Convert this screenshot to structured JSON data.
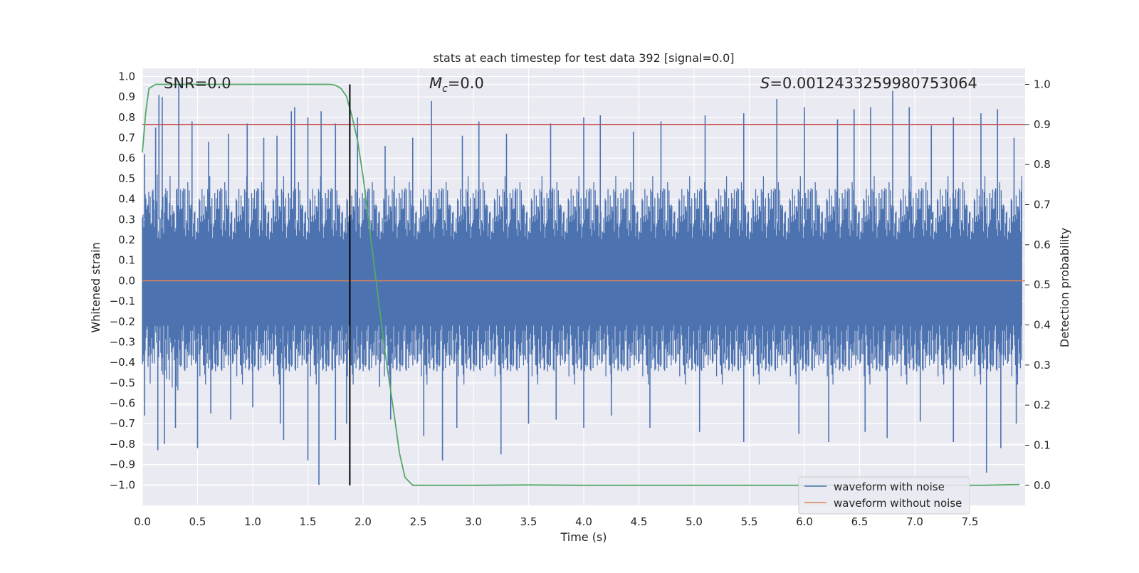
{
  "chart_data": {
    "type": "line",
    "title": "stats at each timestep for test data 392 [signal=0.0]",
    "xlabel": "Time (s)",
    "ylabel_left": "Whitened strain",
    "ylabel_right": "Detection probability",
    "xlim": [
      0.0,
      8.0
    ],
    "ylim_left": [
      -1.1,
      1.04
    ],
    "ylim_right": [
      -0.05,
      1.04
    ],
    "x_ticks": [
      "0.0",
      "0.5",
      "1.0",
      "1.5",
      "2.0",
      "2.5",
      "3.0",
      "3.5",
      "4.0",
      "4.5",
      "5.0",
      "5.5",
      "6.0",
      "6.5",
      "7.0",
      "7.5"
    ],
    "y_left_ticks": [
      "1.0",
      "0.9",
      "0.8",
      "0.7",
      "0.6",
      "0.5",
      "0.4",
      "0.3",
      "0.2",
      "0.1",
      "0.0",
      "-0.1",
      "-0.2",
      "-0.3",
      "-0.4",
      "-0.5",
      "-0.6",
      "-0.7",
      "-0.8",
      "-0.9",
      "-1.0"
    ],
    "y_right_ticks": [
      "1.0",
      "0.9",
      "0.8",
      "0.7",
      "0.6",
      "0.5",
      "0.4",
      "0.3",
      "0.2",
      "0.1",
      "0.0"
    ],
    "grid": true,
    "legend_position": "lower-right",
    "annotations": {
      "snr": "SNR=0.0",
      "mc_symbol": "M",
      "mc_subscript": "c",
      "mc_value": "=0.0",
      "s_symbol": "S",
      "s_value": "=0.0012433259980753064"
    },
    "series": [
      {
        "name": "waveform with noise",
        "axis": "left",
        "color": "#4c72b0",
        "description_values": {
          "typical_band": [
            -0.45,
            0.45
          ],
          "max": 0.97,
          "min": -1.0
        },
        "peaks": [
          {
            "x": 0.02,
            "y": 0.62
          },
          {
            "x": 0.12,
            "y": 0.75
          },
          {
            "x": 0.15,
            "y": 0.91
          },
          {
            "x": 0.18,
            "y": 0.9
          },
          {
            "x": 0.33,
            "y": 0.97
          },
          {
            "x": 0.45,
            "y": 0.78
          },
          {
            "x": 0.6,
            "y": 0.68
          },
          {
            "x": 0.78,
            "y": 0.72
          },
          {
            "x": 0.95,
            "y": 0.77
          },
          {
            "x": 1.1,
            "y": 0.7
          },
          {
            "x": 1.22,
            "y": 0.71
          },
          {
            "x": 1.35,
            "y": 0.83
          },
          {
            "x": 1.38,
            "y": 0.85
          },
          {
            "x": 1.5,
            "y": 0.8
          },
          {
            "x": 1.62,
            "y": 0.83
          },
          {
            "x": 1.75,
            "y": 0.77
          },
          {
            "x": 1.95,
            "y": 0.8
          },
          {
            "x": 2.2,
            "y": 0.66
          },
          {
            "x": 2.45,
            "y": 0.7
          },
          {
            "x": 2.62,
            "y": 0.88
          },
          {
            "x": 2.9,
            "y": 0.71
          },
          {
            "x": 3.05,
            "y": 0.78
          },
          {
            "x": 3.3,
            "y": 0.72
          },
          {
            "x": 3.7,
            "y": 0.77
          },
          {
            "x": 4.0,
            "y": 0.8
          },
          {
            "x": 4.15,
            "y": 0.81
          },
          {
            "x": 4.45,
            "y": 0.73
          },
          {
            "x": 4.7,
            "y": 0.78
          },
          {
            "x": 5.1,
            "y": 0.81
          },
          {
            "x": 5.45,
            "y": 0.82
          },
          {
            "x": 5.75,
            "y": 0.89
          },
          {
            "x": 6.0,
            "y": 0.85
          },
          {
            "x": 6.3,
            "y": 0.79
          },
          {
            "x": 6.45,
            "y": 0.84
          },
          {
            "x": 6.6,
            "y": 0.85
          },
          {
            "x": 6.8,
            "y": 0.93
          },
          {
            "x": 6.95,
            "y": 0.85
          },
          {
            "x": 7.15,
            "y": 0.76
          },
          {
            "x": 7.35,
            "y": 0.8
          },
          {
            "x": 7.6,
            "y": 0.82
          },
          {
            "x": 7.75,
            "y": 0.84
          },
          {
            "x": 7.9,
            "y": 0.7
          }
        ],
        "troughs": [
          {
            "x": 0.02,
            "y": -0.66
          },
          {
            "x": 0.14,
            "y": -0.83
          },
          {
            "x": 0.2,
            "y": -0.8
          },
          {
            "x": 0.3,
            "y": -0.72
          },
          {
            "x": 0.5,
            "y": -0.82
          },
          {
            "x": 0.62,
            "y": -0.65
          },
          {
            "x": 0.8,
            "y": -0.68
          },
          {
            "x": 1.0,
            "y": -0.62
          },
          {
            "x": 1.25,
            "y": -0.7
          },
          {
            "x": 1.28,
            "y": -0.78
          },
          {
            "x": 1.5,
            "y": -0.88
          },
          {
            "x": 1.6,
            "y": -1.0
          },
          {
            "x": 1.75,
            "y": -0.78
          },
          {
            "x": 1.85,
            "y": -0.7
          },
          {
            "x": 2.15,
            "y": -0.52
          },
          {
            "x": 2.25,
            "y": -0.68
          },
          {
            "x": 2.55,
            "y": -0.76
          },
          {
            "x": 2.72,
            "y": -0.88
          },
          {
            "x": 2.85,
            "y": -0.72
          },
          {
            "x": 3.25,
            "y": -0.85
          },
          {
            "x": 3.5,
            "y": -0.7
          },
          {
            "x": 3.75,
            "y": -0.68
          },
          {
            "x": 4.0,
            "y": -0.72
          },
          {
            "x": 4.25,
            "y": -0.66
          },
          {
            "x": 4.6,
            "y": -0.72
          },
          {
            "x": 5.05,
            "y": -0.74
          },
          {
            "x": 5.45,
            "y": -0.79
          },
          {
            "x": 5.95,
            "y": -0.75
          },
          {
            "x": 6.22,
            "y": -0.79
          },
          {
            "x": 6.55,
            "y": -0.74
          },
          {
            "x": 6.75,
            "y": -0.77
          },
          {
            "x": 7.05,
            "y": -0.69
          },
          {
            "x": 7.35,
            "y": -0.79
          },
          {
            "x": 7.65,
            "y": -0.94
          },
          {
            "x": 7.78,
            "y": -0.82
          },
          {
            "x": 7.92,
            "y": -0.7
          }
        ]
      },
      {
        "name": "waveform without noise",
        "axis": "left",
        "color": "#dd8452",
        "x": [
          0.0,
          8.0
        ],
        "y": [
          0.0,
          0.0
        ]
      },
      {
        "name": "detection probability",
        "axis": "right",
        "color": "#55a868",
        "x": [
          0.0,
          0.03,
          0.06,
          0.12,
          0.2,
          0.5,
          1.0,
          1.5,
          1.6,
          1.7,
          1.75,
          1.8,
          1.85,
          1.9,
          1.95,
          2.0,
          2.1,
          2.2,
          2.28,
          2.33,
          2.38,
          2.45,
          2.6,
          3.0,
          3.5,
          4.0,
          5.0,
          6.0,
          7.0,
          7.6,
          7.95
        ],
        "y": [
          0.83,
          0.93,
          0.99,
          1.0,
          1.0,
          1.0,
          1.0,
          1.0,
          1.0,
          1.0,
          0.998,
          0.99,
          0.97,
          0.92,
          0.86,
          0.77,
          0.55,
          0.33,
          0.18,
          0.08,
          0.02,
          0.0,
          0.0,
          0.0,
          0.001,
          0.0,
          0.0,
          0.0,
          0.0,
          0.0,
          0.002
        ]
      }
    ],
    "threshold_line": {
      "axis": "right",
      "value": 0.9,
      "color": "#c44e52"
    },
    "marker_line": {
      "x": 1.88,
      "color": "#000000"
    },
    "legend_labels": [
      "waveform with noise",
      "waveform without noise"
    ]
  }
}
